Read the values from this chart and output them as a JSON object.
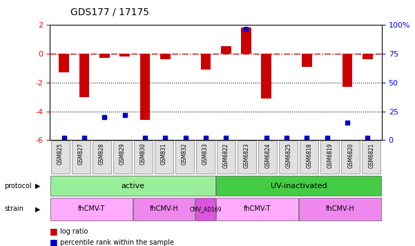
{
  "title": "GDS177 / 17175",
  "samples": [
    "GSM825",
    "GSM827",
    "GSM828",
    "GSM829",
    "GSM830",
    "GSM831",
    "GSM832",
    "GSM833",
    "GSM6822",
    "GSM6823",
    "GSM6824",
    "GSM6825",
    "GSM6818",
    "GSM6819",
    "GSM6820",
    "GSM6821"
  ],
  "log_ratios": [
    -1.3,
    -3.0,
    -0.3,
    -0.2,
    -4.6,
    -0.4,
    0.0,
    -1.1,
    0.5,
    1.8,
    -3.1,
    0.0,
    -0.9,
    0.0,
    -2.3,
    -0.4
  ],
  "percentile_ranks": [
    2,
    2,
    20,
    22,
    2,
    2,
    2,
    2,
    2,
    96,
    2,
    2,
    2,
    2,
    15,
    2
  ],
  "ylim_left": [
    -6,
    2
  ],
  "ylim_right": [
    0,
    100
  ],
  "bar_color": "#cc0000",
  "dot_color": "#0000cc",
  "hline_y": 0,
  "dotted_lines": [
    -2,
    -4
  ],
  "protocol_groups": [
    {
      "label": "active",
      "start": 0,
      "end": 8,
      "color": "#99ee99"
    },
    {
      "label": "UV-inactivated",
      "start": 8,
      "end": 16,
      "color": "#44cc44"
    }
  ],
  "strain_groups": [
    {
      "label": "fhCMV-T",
      "start": 0,
      "end": 4,
      "color": "#ffaaff"
    },
    {
      "label": "fhCMV-H",
      "start": 4,
      "end": 7,
      "color": "#ee88ee"
    },
    {
      "label": "CMV_AD169",
      "start": 7,
      "end": 8,
      "color": "#dd55dd"
    },
    {
      "label": "fhCMV-T",
      "start": 8,
      "end": 12,
      "color": "#ffaaff"
    },
    {
      "label": "fhCMV-H",
      "start": 12,
      "end": 16,
      "color": "#ee88ee"
    }
  ],
  "legend_log_ratio": "log ratio",
  "legend_percentile": "percentile rank within the sample",
  "ylabel_left": "",
  "ylabel_right": "",
  "left_ticks": [
    2,
    0,
    -2,
    -4,
    -6
  ],
  "right_ticks": [
    100,
    75,
    50,
    25,
    0
  ],
  "right_tick_labels": [
    "100%",
    "75",
    "50",
    "25",
    "0"
  ]
}
